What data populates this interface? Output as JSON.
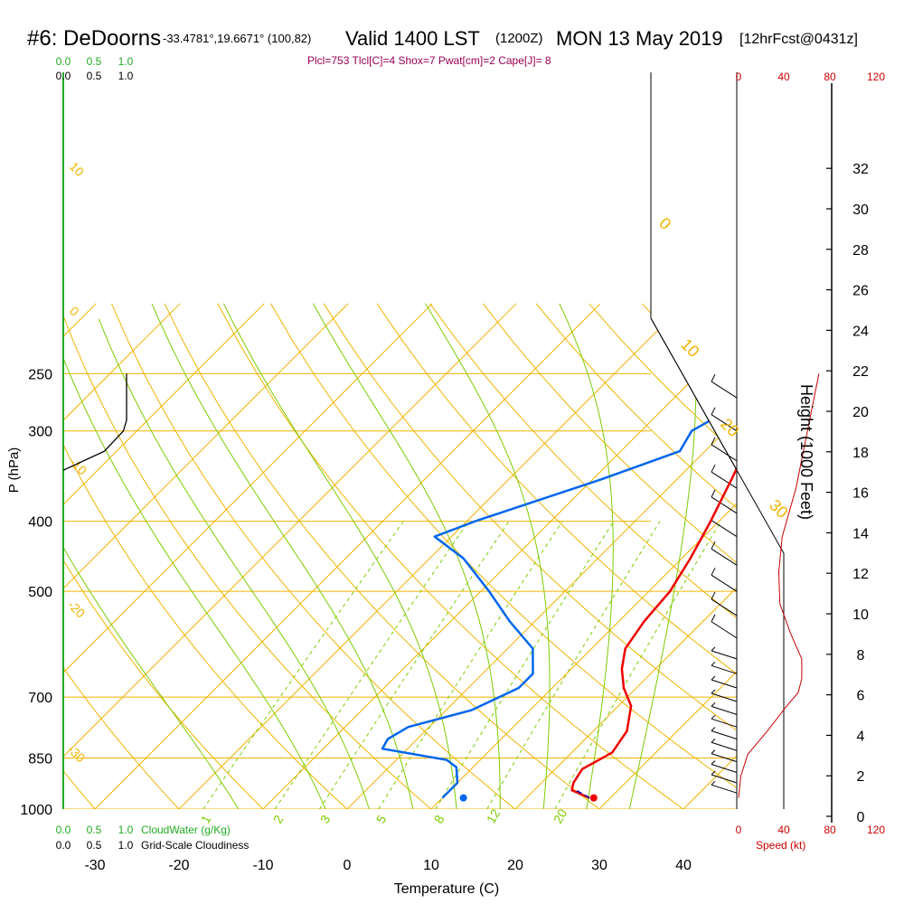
{
  "header": {
    "station": "#6: DeDoorns",
    "coords": "-33.4781°,19.6671° (100,82)",
    "valid": "Valid 1400 LST",
    "utc": "(1200Z)",
    "date": "MON 13 May 2019",
    "forecast": "[12hrFcst@0431z]",
    "indices": "Plcl=753 Tlcl[C]=4 Shox=7 Pwat[cm]=2 Cape[J]= 8"
  },
  "cloud_scale": {
    "cloudwater_ticks": [
      "0.0",
      "0.5",
      "1.0"
    ],
    "cloudiness_ticks": [
      "0.0",
      "0.5",
      "1.0"
    ],
    "cloudwater_label": "CloudWater (g/Kg)",
    "cloudiness_label": "Grid-Scale Cloudiness"
  },
  "wind_panel": {
    "speed_ticks": [
      "0",
      "40",
      "80",
      "120"
    ],
    "speed_label": "Speed (kt)"
  },
  "colors": {
    "temperature": "#ee0000",
    "dewpoint": "#0066ee",
    "isotherm": "#f0b400",
    "mixing_ratio": "#7ccc00",
    "cloudwater": "#22aa22",
    "speed": "#cc0000"
  },
  "chart_data": {
    "type": "line",
    "xlabel": "Temperature (C)",
    "ylabel": "P (hPa)",
    "y2label": "Height (1000 Feet)",
    "x_ticks": [
      "-30",
      "-20",
      "-10",
      "0",
      "10",
      "20",
      "30",
      "40"
    ],
    "p_ticks": [
      "250",
      "300",
      "400",
      "500",
      "700",
      "850",
      "1000"
    ],
    "height_ticks": [
      "0",
      "2",
      "4",
      "6",
      "8",
      "10",
      "12",
      "14",
      "16",
      "18",
      "20",
      "22",
      "24",
      "26",
      "28",
      "30",
      "32"
    ],
    "isotherm_labels": [
      "10",
      "0",
      "-10",
      "-20",
      "-30",
      "0",
      "10",
      "20",
      "30"
    ],
    "mixing_ratio_labels": [
      "1",
      "2",
      "3",
      "5",
      "8",
      "12",
      "20"
    ],
    "xlim": [
      -35,
      45
    ],
    "ylim_hpa": [
      1000,
      250
    ],
    "series": [
      {
        "key": "temperature",
        "points": [
          [
            27.5,
            965
          ],
          [
            24.5,
            942
          ],
          [
            23.8,
            920
          ],
          [
            23.2,
            880
          ],
          [
            24.0,
            858
          ],
          [
            24.8,
            835
          ],
          [
            24.0,
            780
          ],
          [
            21.5,
            720
          ],
          [
            18.5,
            680
          ],
          [
            16,
            640
          ],
          [
            14,
            600
          ],
          [
            13,
            550
          ],
          [
            12.5,
            500
          ],
          [
            11,
            450
          ],
          [
            9,
            400
          ],
          [
            6.5,
            350
          ],
          [
            3.5,
            300
          ],
          [
            0.5,
            260
          ]
        ]
      },
      {
        "key": "dewpoint",
        "points": [
          [
            10,
            965
          ],
          [
            10,
            920
          ],
          [
            8,
            875
          ],
          [
            6,
            855
          ],
          [
            -3,
            825
          ],
          [
            -3.5,
            800
          ],
          [
            -2.5,
            770
          ],
          [
            3,
            730
          ],
          [
            6,
            680
          ],
          [
            6,
            650
          ],
          [
            3,
            600
          ],
          [
            -3,
            550
          ],
          [
            -9,
            500
          ],
          [
            -16,
            450
          ],
          [
            -22,
            420
          ],
          [
            -19,
            400
          ],
          [
            -9,
            350
          ],
          [
            -3,
            320
          ],
          [
            -4,
            300
          ],
          [
            -2,
            280
          ],
          [
            -4,
            260
          ]
        ]
      }
    ],
    "parcel": {
      "points": [
        [
          27.5,
          965
        ],
        [
          25,
          942
        ]
      ]
    },
    "surface_markers": {
      "temperature": [
        28,
        965
      ],
      "dewpoint": [
        12.5,
        965
      ]
    },
    "cloudiness_profile": {
      "points": [
        [
          1.0,
          250
        ],
        [
          1.0,
          290
        ],
        [
          0.95,
          300
        ],
        [
          0.65,
          320
        ],
        [
          0,
          340
        ]
      ]
    },
    "wind_speed_profile": {
      "points": [
        [
          0,
          965
        ],
        [
          2,
          900
        ],
        [
          8,
          840
        ],
        [
          25,
          780
        ],
        [
          42,
          720
        ],
        [
          52,
          690
        ],
        [
          55,
          660
        ],
        [
          55,
          620
        ],
        [
          45,
          570
        ],
        [
          36,
          520
        ],
        [
          35,
          470
        ],
        [
          38,
          420
        ],
        [
          50,
          360
        ],
        [
          60,
          300
        ],
        [
          70,
          250
        ]
      ]
    }
  }
}
